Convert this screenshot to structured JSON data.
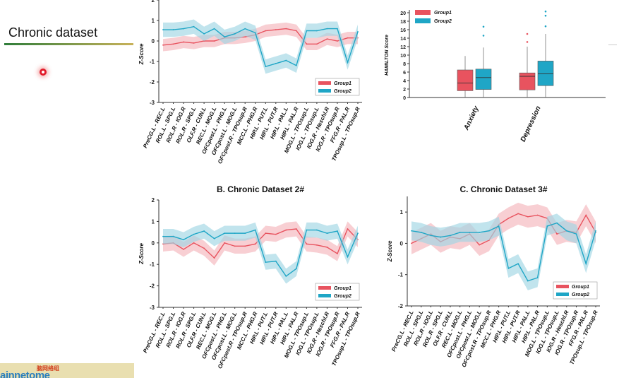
{
  "slide": {
    "title": "Chronic dataset"
  },
  "logo": {
    "cn_text": "脑网络组",
    "en_text": "ainnetome"
  },
  "colors": {
    "group1": "#e8535f",
    "group2": "#1fa6c6",
    "group1_band": "#f4b6bc",
    "group2_band": "#9fd6e4"
  },
  "chart_data": [
    {
      "type": "line",
      "title": "",
      "ylabel": "Z-Score",
      "ylim": [
        -3,
        2
      ],
      "yticks": [
        -3,
        -2,
        -1,
        0,
        1,
        2
      ],
      "legend_position": "bottom-right",
      "categories": [
        "PreCG.L - REC.L",
        "ROL.L - SPG.L",
        "ROL.R - IOG.R",
        "ROL.R - SPG.L",
        "OLF.R - CUN.L",
        "REC.L - MOG.L",
        "OFCpost.L - PHG.L",
        "OFCpost.L - MOG.L",
        "OFCpost.R - TPOsup.R",
        "MCC.L - PHG.R",
        "HIP.L - PUT.L",
        "HIP.L - PUT.R",
        "HIP.L - PAL.L",
        "HIP.L - PAL.R",
        "MOG.L - TPOsup.L",
        "IOG.L - TPOsup.L",
        "IOG.R - Heschl.R",
        "IOG.R - TPOsup.R",
        "FFG.R - PAL.R",
        "TPOsup.L - TPOsup.R"
      ],
      "series": [
        {
          "name": "Group1",
          "values": [
            -0.2,
            -0.15,
            -0.05,
            -0.1,
            0.0,
            0.0,
            0.15,
            0.15,
            0.2,
            0.3,
            0.5,
            0.55,
            0.6,
            0.5,
            -0.15,
            -0.15,
            0.1,
            0.0,
            0.15,
            0.15
          ],
          "band": 0.3
        },
        {
          "name": "Group2",
          "values": [
            0.55,
            0.55,
            0.6,
            0.7,
            0.35,
            0.6,
            0.2,
            0.35,
            0.6,
            0.4,
            -1.25,
            -1.1,
            -0.95,
            -1.2,
            0.5,
            0.5,
            0.6,
            0.6,
            -1.05,
            0.45
          ],
          "band": 0.35
        }
      ]
    },
    {
      "type": "box",
      "title": "",
      "ylabel": "HAMILTON Score",
      "ylim": [
        0,
        20
      ],
      "yticks": [
        0,
        2,
        4,
        6,
        8,
        10,
        12,
        14,
        16,
        18,
        20
      ],
      "legend_position": "top-left",
      "categories": [
        "Anxiety",
        "Depression"
      ],
      "series": [
        {
          "name": "Group1",
          "boxes": [
            {
              "min": 0,
              "q1": 1.6,
              "median": 3.4,
              "q3": 6.5,
              "max": 9.8,
              "outliers": []
            },
            {
              "min": 0,
              "q1": 1.8,
              "median": 5.0,
              "q3": 5.8,
              "max": 12.0,
              "outliers": [
                13.1,
                15.0
              ]
            }
          ]
        },
        {
          "name": "Group2",
          "boxes": [
            {
              "min": 0,
              "q1": 1.9,
              "median": 4.7,
              "q3": 6.7,
              "max": 11.8,
              "outliers": [
                14.6,
                16.7
              ]
            },
            {
              "min": 0,
              "q1": 2.8,
              "median": 5.6,
              "q3": 8.6,
              "max": 15.0,
              "outliers": [
                16.8,
                19.3,
                20.3
              ]
            }
          ]
        }
      ]
    },
    {
      "type": "line",
      "title": "B. Chronic Dataset 2#",
      "ylabel": "Z-Score",
      "ylim": [
        -3,
        2
      ],
      "yticks": [
        -3,
        -2,
        -1,
        0,
        1,
        2
      ],
      "legend_position": "bottom-right",
      "categories": [
        "PreCG.L - REC.L",
        "ROL.L - SPG.L",
        "ROL.R - IOG.R",
        "ROL.R - SPG.L",
        "OLF.R - CUN.L",
        "REC.L - MOG.L",
        "OFCpost.L - PHG.L",
        "OFCpost.L - MOG.L",
        "OFCpost.R - TPOsup.R",
        "MCC.L - PHG.R",
        "HIP.L - PUT.L",
        "HIP.L - PUT.R",
        "HIP.L - PAL.L",
        "HIP.L - PAL.R",
        "MOG.L - TPOsup.L",
        "IOG.L - TPOsup.L",
        "IOG.R - Heschl.R",
        "IOG.R - TPOsup.R",
        "FFG.R - PAL.R",
        "TPOsup.L - TPOsup.R"
      ],
      "series": [
        {
          "name": "Group1",
          "values": [
            -0.05,
            0.0,
            -0.3,
            0.0,
            -0.25,
            -0.7,
            0.0,
            -0.15,
            -0.15,
            -0.05,
            0.45,
            0.4,
            0.6,
            0.65,
            -0.05,
            -0.1,
            -0.2,
            -0.5,
            0.65,
            0.15
          ],
          "band": 0.35
        },
        {
          "name": "Group2",
          "values": [
            0.3,
            0.3,
            0.15,
            0.4,
            0.55,
            0.2,
            0.45,
            0.45,
            0.45,
            0.6,
            -0.9,
            -0.85,
            -1.55,
            -1.2,
            0.6,
            0.6,
            0.45,
            0.55,
            -0.65,
            0.45
          ],
          "band": 0.35
        }
      ]
    },
    {
      "type": "line",
      "title": "C. Chronic Dataset 3#",
      "ylabel": "Z-Score",
      "ylim": [
        -2,
        1.5
      ],
      "yticks": [
        -2,
        -1,
        0,
        1
      ],
      "legend_position": "bottom-right",
      "categories": [
        "PreCG.L - REC.L",
        "ROL.L - SPG.L",
        "ROL.R - IOG.L",
        "ROL.R - SPG.L",
        "OLF.R - CUN.L",
        "REC.L - MOG.L",
        "OFCpost.L - PHG.L",
        "OFCpost.L - MOG.L",
        "OFCpost.R - TPOsup.R",
        "MCC.L - PHG.R",
        "HIP.L - PUT.L",
        "HIP.L - PUT.R",
        "HIP.L - PAL.L",
        "HIP.L - PAL.R",
        "MOG.L - TPOsup.L",
        "IOG.L - TPOsup.L",
        "IOG.R - Heschl.R",
        "IOG.R - TPOsup.R",
        "FFG.R - PAL.R",
        "TPOsup.L - TPOsup.R"
      ],
      "series": [
        {
          "name": "Group1",
          "values": [
            0.0,
            0.15,
            0.3,
            0.05,
            0.2,
            0.15,
            0.3,
            -0.05,
            0.1,
            0.6,
            0.8,
            0.95,
            0.85,
            0.9,
            0.8,
            0.3,
            0.4,
            0.35,
            0.9,
            0.35
          ],
          "band": 0.35
        },
        {
          "name": "Group2",
          "values": [
            0.4,
            0.35,
            0.25,
            0.2,
            0.25,
            0.35,
            0.35,
            0.35,
            0.4,
            0.55,
            -0.8,
            -0.65,
            -1.2,
            -1.1,
            0.55,
            0.65,
            0.4,
            0.3,
            -0.65,
            0.4
          ],
          "band": 0.3
        }
      ]
    }
  ]
}
